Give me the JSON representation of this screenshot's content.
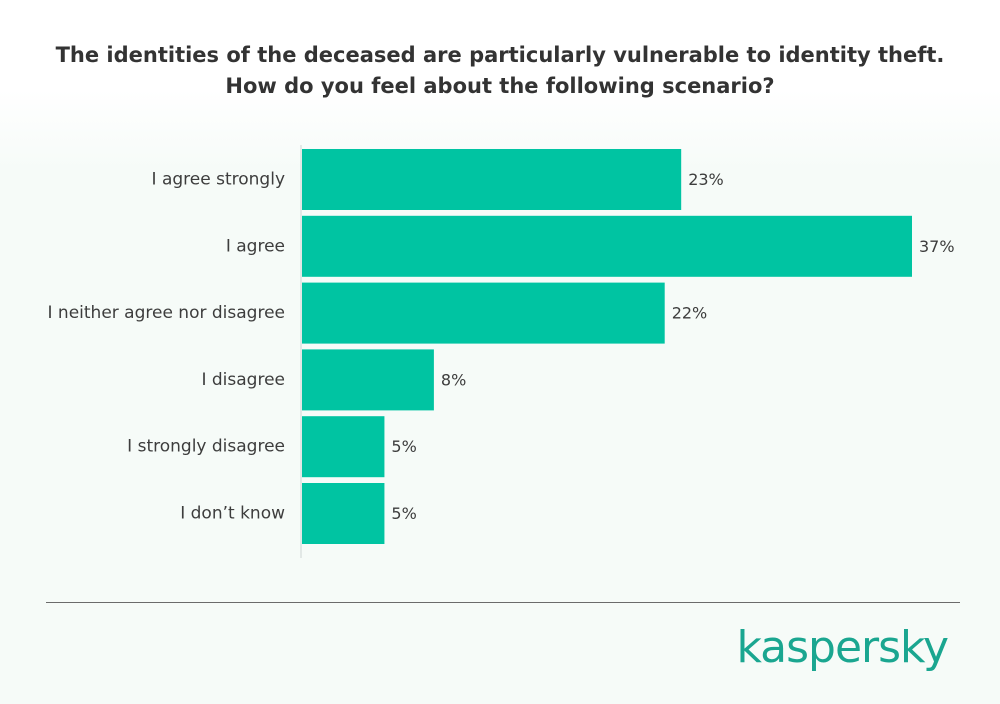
{
  "chart_data": {
    "type": "bar",
    "orientation": "horizontal",
    "title_lines": [
      "The identities of the deceased are particularly vulnerable to identity theft.",
      "How do you feel about the following scenario?"
    ],
    "categories": [
      "I agree strongly",
      "I agree",
      "I neither agree nor disagree",
      "I disagree",
      "I strongly disagree",
      "I don’t know"
    ],
    "values": [
      23,
      37,
      22,
      8,
      5,
      5
    ],
    "value_labels": [
      "23%",
      "37%",
      "22%",
      "8%",
      "5%",
      "5%"
    ],
    "unit": "%",
    "xlim": [
      0,
      37
    ],
    "grid": false,
    "legend": "none",
    "bar_color": "#00c4a2"
  },
  "brand": {
    "logo_text": "kaspersky",
    "logo_color": "#1aa690"
  }
}
